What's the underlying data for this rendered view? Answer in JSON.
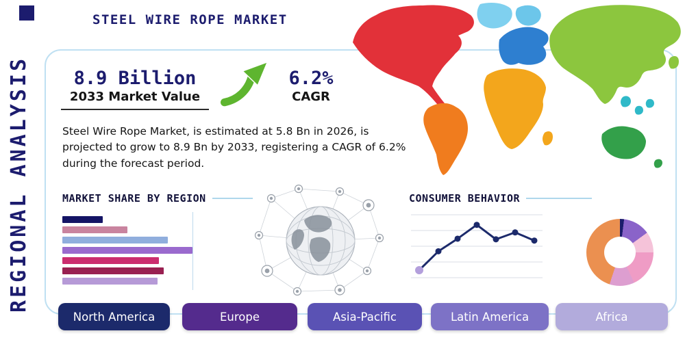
{
  "header": {
    "title": "STEEL WIRE ROPE MARKET"
  },
  "side_label": "REGIONAL ANALYSIS",
  "stats": {
    "market_value": "8.9 Billion",
    "market_value_label": "2033 Market Value",
    "cagr_value": "6.2%",
    "cagr_label": "CAGR"
  },
  "description": "Steel Wire Rope Market, is estimated at 5.8 Bn in 2026, is projected to grow to 8.9 Bn by 2033, registering a CAGR of 6.2% during the forecast period.",
  "sections": {
    "market_share": "MARKET SHARE BY REGION",
    "consumer_behavior": "CONSUMER BEHAVIOR"
  },
  "regions": [
    {
      "label": "North America",
      "color": "#1c2a6b"
    },
    {
      "label": "Europe",
      "color": "#542b8d"
    },
    {
      "label": "Asia-Pacific",
      "color": "#5a52b4"
    },
    {
      "label": "Latin America",
      "color": "#7d72c6"
    },
    {
      "label": "Africa",
      "color": "#b2abdc"
    }
  ],
  "chart_data": [
    {
      "type": "bar",
      "title": "MARKET SHARE BY REGION",
      "orientation": "horizontal",
      "unit": "relative length, % of longest bar",
      "values": [
        31,
        50,
        81,
        100,
        74,
        78,
        73
      ],
      "colors": [
        "#141465",
        "#c9849f",
        "#90aedd",
        "#9a6ace",
        "#cb2d6f",
        "#992051",
        "#b69ad7"
      ]
    },
    {
      "type": "line",
      "title": "CONSUMER BEHAVIOR",
      "unit": "relative height, % of chart",
      "values": [
        12,
        42,
        62,
        84,
        61,
        72,
        59
      ],
      "line_color": "#1c2a6b",
      "marker_color": "#1c2a6b",
      "first_marker_color": "#b39fdc",
      "gridlines": 5
    },
    {
      "type": "pie",
      "donut": true,
      "unit": "% of ring, clockwise from top",
      "slices": [
        {
          "color": "#1b1b6b",
          "value": 2
        },
        {
          "color": "#8a63c9",
          "value": 13
        },
        {
          "color": "#f5c3d9",
          "value": 10
        },
        {
          "color": "#ef9cc5",
          "value": 18
        },
        {
          "color": "#dd9ed0",
          "value": 12
        },
        {
          "color": "#eb9050",
          "value": 45
        }
      ]
    }
  ],
  "map": {
    "continents": [
      {
        "name": "north-america",
        "color": "#e23139"
      },
      {
        "name": "greenland",
        "color": "#7fd0ef"
      },
      {
        "name": "south-america",
        "color": "#f07c1e"
      },
      {
        "name": "europe",
        "color": "#2e7fd0"
      },
      {
        "name": "scandinavia",
        "color": "#6cc6ea"
      },
      {
        "name": "africa",
        "color": "#f3a61c"
      },
      {
        "name": "madagascar",
        "color": "#f3a61c"
      },
      {
        "name": "asia",
        "color": "#8cc63e"
      },
      {
        "name": "japan",
        "color": "#8cc63e"
      },
      {
        "name": "southeast-asia",
        "color": "#2fb9c8"
      },
      {
        "name": "australia",
        "color": "#33a04a"
      },
      {
        "name": "new-zealand",
        "color": "#33a04a"
      }
    ]
  },
  "colors": {
    "navy": "#1c1c6e",
    "heading": "#12123a",
    "panel_border": "#bfe0f2",
    "rule": "#aed7ec",
    "arrow_green": "#5eb52f",
    "text": "#141414"
  }
}
